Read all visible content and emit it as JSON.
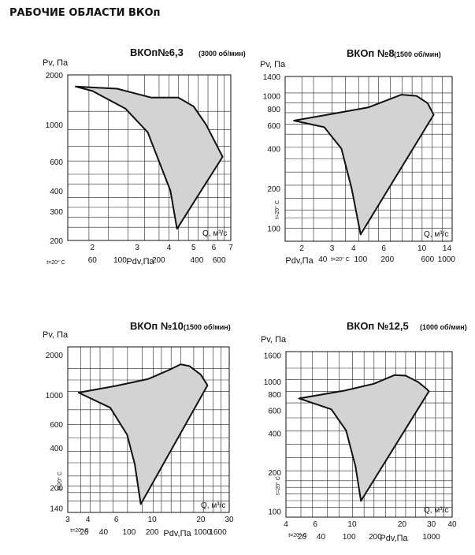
{
  "page_title": "РАБОЧИЕ ОБЛАСТИ ВКОп",
  "chart_data": [
    {
      "type": "area",
      "title": "ВКОп№6,3",
      "subtitle": "(3000 об/мин)",
      "ylabel": "Pv, Па",
      "xlabel": "Q, м³/с",
      "pdv_label": "Pdv,Па",
      "temp_label": "t=20° C",
      "ylim": [
        200,
        2000
      ],
      "xlim": [
        1.6,
        7
      ],
      "y_scale": "log",
      "x_scale": "log",
      "ytick_labels": [
        "2000",
        "1000",
        "600",
        "400",
        "300",
        "200"
      ],
      "ytick_values": [
        2000,
        1000,
        600,
        400,
        300,
        200
      ],
      "xtick_labels": [
        "2",
        "3",
        "4",
        "5",
        "6",
        "7"
      ],
      "xtick_values": [
        2,
        3,
        4,
        5,
        6,
        7
      ],
      "pdv_labels": [
        "60",
        "100",
        "200",
        "400",
        "600"
      ],
      "pdv_positions": [
        2.0,
        2.57,
        3.64,
        5.15,
        6.3
      ],
      "outline": [
        [
          1.72,
          1700
        ],
        [
          2.5,
          1650
        ],
        [
          3.4,
          1460
        ],
        [
          4.35,
          1460
        ],
        [
          5.0,
          1290
        ],
        [
          5.6,
          1000
        ],
        [
          6.5,
          640
        ],
        [
          4.3,
          235
        ],
        [
          4.05,
          400
        ],
        [
          3.3,
          900
        ],
        [
          2.7,
          1250
        ],
        [
          2.0,
          1600
        ],
        [
          1.72,
          1700
        ]
      ]
    },
    {
      "type": "area",
      "title": "ВКОп №8",
      "subtitle": "(1500 об/мин)",
      "ylabel": "Pv, Па",
      "xlabel": "Q, м³/с",
      "pdv_label": "Pdv,Па",
      "temp_label": "t=20° C",
      "ylim": [
        80,
        1400
      ],
      "xlim": [
        1.6,
        15
      ],
      "y_scale": "log",
      "x_scale": "log",
      "ytick_labels": [
        "1400",
        "1000",
        "800",
        "600",
        "400",
        "200",
        "100"
      ],
      "ytick_values": [
        1400,
        1000,
        800,
        600,
        400,
        200,
        100
      ],
      "xtick_labels": [
        "2",
        "3",
        "4",
        "6",
        "10",
        "14"
      ],
      "xtick_values": [
        2,
        3,
        4,
        6,
        10,
        14
      ],
      "pdv_labels": [
        "40",
        "100",
        "200",
        "600",
        "1000"
      ],
      "pdv_positions": [
        2.65,
        4.4,
        6.3,
        10.8,
        13.9
      ],
      "outline": [
        [
          1.8,
          650
        ],
        [
          3.0,
          730
        ],
        [
          4.9,
          820
        ],
        [
          7.6,
          1020
        ],
        [
          9.3,
          1000
        ],
        [
          10.8,
          880
        ],
        [
          11.7,
          720
        ],
        [
          4.4,
          90
        ],
        [
          3.9,
          200
        ],
        [
          3.4,
          400
        ],
        [
          2.7,
          580
        ],
        [
          1.8,
          650
        ]
      ]
    },
    {
      "type": "area",
      "title": "ВКОп №10",
      "subtitle": "(1500 об/мин)",
      "ylabel": "Pv, Па",
      "xlabel": "Q, м³/с",
      "pdv_label": "Pdv,Па",
      "temp_label": "t=20° C",
      "ylim": [
        130,
        2300
      ],
      "xlim": [
        3,
        30
      ],
      "y_scale": "log",
      "x_scale": "log",
      "ytick_labels": [
        "2000",
        "1000",
        "600",
        "400",
        "200",
        "140"
      ],
      "ytick_values": [
        2000,
        1000,
        600,
        400,
        200,
        140
      ],
      "xtick_labels": [
        "3",
        "4",
        "6",
        "10",
        "20",
        "30"
      ],
      "xtick_values": [
        3,
        4,
        6,
        10,
        20,
        30
      ],
      "pdv_labels": [
        "20",
        "40",
        "100",
        "200",
        "1000",
        "1600"
      ],
      "pdv_positions": [
        3.8,
        5.0,
        7.2,
        10.0,
        20.5,
        25.5
      ],
      "outline": [
        [
          3.5,
          1040
        ],
        [
          6.0,
          1170
        ],
        [
          9.5,
          1320
        ],
        [
          13.0,
          1560
        ],
        [
          15.0,
          1700
        ],
        [
          17.0,
          1650
        ],
        [
          20.0,
          1420
        ],
        [
          22.0,
          1180
        ],
        [
          8.5,
          150
        ],
        [
          7.8,
          300
        ],
        [
          7.0,
          500
        ],
        [
          5.5,
          800
        ],
        [
          3.5,
          1040
        ]
      ]
    },
    {
      "type": "area",
      "title": "ВКОп №12,5",
      "subtitle": "(1000 об/мин)",
      "ylabel": "Pv, Па",
      "xlabel": "Q, м³/с",
      "pdv_label": "Pdv,Па",
      "temp_label": "t=20° C",
      "ylim": [
        90,
        1700
      ],
      "xlim": [
        4,
        40
      ],
      "y_scale": "log",
      "x_scale": "log",
      "ytick_labels": [
        "1600",
        "1000",
        "800",
        "600",
        "400",
        "200",
        "100"
      ],
      "ytick_values": [
        1600,
        1000,
        800,
        600,
        400,
        200,
        100
      ],
      "xtick_labels": [
        "4",
        "6",
        "10",
        "20",
        "30",
        "40"
      ],
      "xtick_values": [
        4,
        6,
        10,
        20,
        30,
        40
      ],
      "pdv_labels": [
        "20",
        "40",
        "100",
        "200",
        "1000"
      ],
      "pdv_positions": [
        5.0,
        6.5,
        9.6,
        13.8,
        30.0
      ],
      "outline": [
        [
          4.8,
          740
        ],
        [
          9.0,
          850
        ],
        [
          13.5,
          960
        ],
        [
          18.0,
          1120
        ],
        [
          21.0,
          1110
        ],
        [
          25.0,
          990
        ],
        [
          28.0,
          880
        ],
        [
          29.0,
          840
        ],
        [
          11.3,
          120
        ],
        [
          10.5,
          220
        ],
        [
          9.2,
          420
        ],
        [
          7.5,
          610
        ],
        [
          4.8,
          740
        ]
      ]
    }
  ]
}
